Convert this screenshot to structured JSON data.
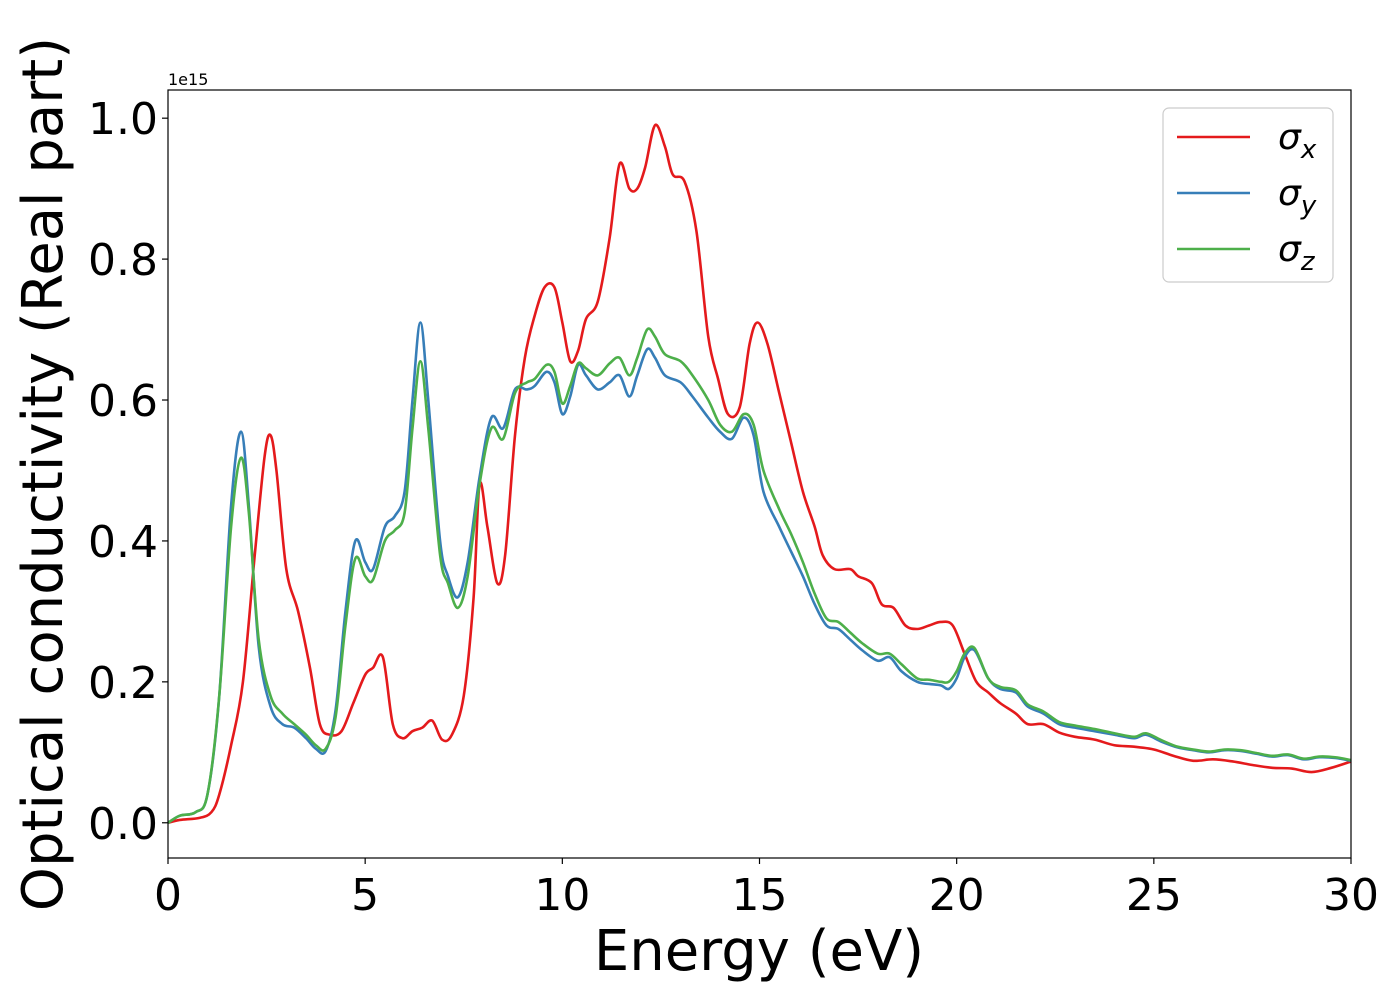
{
  "chart_data": {
    "type": "line",
    "xlabel": "Energy (eV)",
    "ylabel": "Optical conductivity (Real part)",
    "y_offset_label": "1e15",
    "xlim": [
      0,
      30
    ],
    "ylim": [
      -0.05,
      1.04
    ],
    "x_ticks": [
      0,
      5,
      10,
      15,
      20,
      25,
      30
    ],
    "x_tick_labels": [
      "0",
      "5",
      "10",
      "15",
      "20",
      "25",
      "30"
    ],
    "y_ticks": [
      0.0,
      0.2,
      0.4,
      0.6,
      0.8,
      1.0
    ],
    "y_tick_labels": [
      "0.0",
      "0.2",
      "0.4",
      "0.6",
      "0.8",
      "1.0"
    ],
    "grid": false,
    "legend_position": "top-right",
    "series": [
      {
        "name": "σx",
        "legend_base": "σ",
        "legend_sub": "x",
        "color": "#e41a1c",
        "points": [
          [
            0,
            0
          ],
          [
            0.3,
            0.004
          ],
          [
            0.8,
            0.007
          ],
          [
            1.1,
            0.015
          ],
          [
            1.3,
            0.04
          ],
          [
            1.6,
            0.11
          ],
          [
            1.9,
            0.2
          ],
          [
            2.2,
            0.38
          ],
          [
            2.45,
            0.52
          ],
          [
            2.6,
            0.55
          ],
          [
            2.75,
            0.5
          ],
          [
            3.0,
            0.36
          ],
          [
            3.3,
            0.3
          ],
          [
            3.6,
            0.22
          ],
          [
            3.85,
            0.14
          ],
          [
            4.1,
            0.125
          ],
          [
            4.4,
            0.13
          ],
          [
            4.7,
            0.17
          ],
          [
            5.0,
            0.21
          ],
          [
            5.2,
            0.22
          ],
          [
            5.45,
            0.235
          ],
          [
            5.7,
            0.14
          ],
          [
            5.95,
            0.12
          ],
          [
            6.2,
            0.13
          ],
          [
            6.45,
            0.135
          ],
          [
            6.7,
            0.145
          ],
          [
            6.95,
            0.118
          ],
          [
            7.2,
            0.125
          ],
          [
            7.5,
            0.18
          ],
          [
            7.75,
            0.32
          ],
          [
            7.9,
            0.48
          ],
          [
            8.1,
            0.42
          ],
          [
            8.35,
            0.34
          ],
          [
            8.55,
            0.38
          ],
          [
            8.8,
            0.55
          ],
          [
            9.05,
            0.66
          ],
          [
            9.3,
            0.72
          ],
          [
            9.55,
            0.76
          ],
          [
            9.8,
            0.76
          ],
          [
            10.0,
            0.71
          ],
          [
            10.2,
            0.655
          ],
          [
            10.4,
            0.67
          ],
          [
            10.6,
            0.715
          ],
          [
            10.9,
            0.74
          ],
          [
            11.2,
            0.83
          ],
          [
            11.45,
            0.935
          ],
          [
            11.7,
            0.9
          ],
          [
            11.9,
            0.9
          ],
          [
            12.1,
            0.93
          ],
          [
            12.35,
            0.99
          ],
          [
            12.6,
            0.96
          ],
          [
            12.8,
            0.92
          ],
          [
            13.1,
            0.91
          ],
          [
            13.4,
            0.84
          ],
          [
            13.7,
            0.69
          ],
          [
            13.95,
            0.63
          ],
          [
            14.2,
            0.58
          ],
          [
            14.5,
            0.59
          ],
          [
            14.75,
            0.68
          ],
          [
            14.95,
            0.71
          ],
          [
            15.2,
            0.68
          ],
          [
            15.5,
            0.61
          ],
          [
            15.8,
            0.54
          ],
          [
            16.1,
            0.47
          ],
          [
            16.4,
            0.42
          ],
          [
            16.6,
            0.38
          ],
          [
            16.9,
            0.36
          ],
          [
            17.3,
            0.36
          ],
          [
            17.5,
            0.35
          ],
          [
            17.85,
            0.34
          ],
          [
            18.1,
            0.31
          ],
          [
            18.4,
            0.305
          ],
          [
            18.7,
            0.28
          ],
          [
            19.0,
            0.275
          ],
          [
            19.3,
            0.28
          ],
          [
            19.6,
            0.285
          ],
          [
            19.9,
            0.28
          ],
          [
            20.2,
            0.24
          ],
          [
            20.5,
            0.2
          ],
          [
            20.8,
            0.185
          ],
          [
            21.1,
            0.17
          ],
          [
            21.5,
            0.155
          ],
          [
            21.8,
            0.14
          ],
          [
            22.2,
            0.14
          ],
          [
            22.6,
            0.128
          ],
          [
            23.0,
            0.122
          ],
          [
            23.5,
            0.118
          ],
          [
            24.0,
            0.11
          ],
          [
            24.5,
            0.108
          ],
          [
            25.0,
            0.104
          ],
          [
            25.5,
            0.095
          ],
          [
            26.0,
            0.088
          ],
          [
            26.5,
            0.09
          ],
          [
            27.0,
            0.087
          ],
          [
            27.5,
            0.082
          ],
          [
            28.0,
            0.078
          ],
          [
            28.5,
            0.077
          ],
          [
            29.0,
            0.072
          ],
          [
            29.5,
            0.078
          ],
          [
            30,
            0.087
          ]
        ]
      },
      {
        "name": "σy",
        "legend_base": "σ",
        "legend_sub": "y",
        "color": "#377eb8",
        "points": [
          [
            0,
            0
          ],
          [
            0.3,
            0.01
          ],
          [
            0.7,
            0.015
          ],
          [
            1.0,
            0.04
          ],
          [
            1.3,
            0.18
          ],
          [
            1.6,
            0.45
          ],
          [
            1.85,
            0.555
          ],
          [
            2.05,
            0.45
          ],
          [
            2.3,
            0.25
          ],
          [
            2.6,
            0.165
          ],
          [
            2.9,
            0.14
          ],
          [
            3.2,
            0.135
          ],
          [
            3.5,
            0.12
          ],
          [
            3.75,
            0.105
          ],
          [
            4.0,
            0.102
          ],
          [
            4.25,
            0.16
          ],
          [
            4.5,
            0.3
          ],
          [
            4.75,
            0.4
          ],
          [
            5.0,
            0.37
          ],
          [
            5.2,
            0.36
          ],
          [
            5.5,
            0.42
          ],
          [
            5.75,
            0.435
          ],
          [
            6.0,
            0.47
          ],
          [
            6.2,
            0.6
          ],
          [
            6.4,
            0.71
          ],
          [
            6.6,
            0.6
          ],
          [
            6.9,
            0.4
          ],
          [
            7.1,
            0.35
          ],
          [
            7.35,
            0.32
          ],
          [
            7.6,
            0.37
          ],
          [
            7.9,
            0.49
          ],
          [
            8.2,
            0.575
          ],
          [
            8.5,
            0.56
          ],
          [
            8.8,
            0.615
          ],
          [
            9.1,
            0.615
          ],
          [
            9.3,
            0.62
          ],
          [
            9.6,
            0.64
          ],
          [
            9.8,
            0.625
          ],
          [
            10.0,
            0.58
          ],
          [
            10.2,
            0.605
          ],
          [
            10.4,
            0.65
          ],
          [
            10.6,
            0.635
          ],
          [
            10.9,
            0.615
          ],
          [
            11.2,
            0.625
          ],
          [
            11.45,
            0.635
          ],
          [
            11.7,
            0.605
          ],
          [
            11.9,
            0.635
          ],
          [
            12.15,
            0.672
          ],
          [
            12.35,
            0.66
          ],
          [
            12.6,
            0.635
          ],
          [
            13.0,
            0.625
          ],
          [
            13.3,
            0.605
          ],
          [
            13.7,
            0.575
          ],
          [
            14.0,
            0.555
          ],
          [
            14.3,
            0.545
          ],
          [
            14.6,
            0.575
          ],
          [
            14.85,
            0.55
          ],
          [
            15.1,
            0.47
          ],
          [
            15.5,
            0.42
          ],
          [
            15.8,
            0.385
          ],
          [
            16.1,
            0.35
          ],
          [
            16.4,
            0.31
          ],
          [
            16.7,
            0.28
          ],
          [
            17.0,
            0.275
          ],
          [
            17.3,
            0.26
          ],
          [
            17.6,
            0.245
          ],
          [
            18.0,
            0.23
          ],
          [
            18.3,
            0.235
          ],
          [
            18.6,
            0.215
          ],
          [
            19.0,
            0.2
          ],
          [
            19.3,
            0.197
          ],
          [
            19.6,
            0.195
          ],
          [
            19.8,
            0.19
          ],
          [
            20.0,
            0.205
          ],
          [
            20.2,
            0.235
          ],
          [
            20.45,
            0.245
          ],
          [
            20.8,
            0.205
          ],
          [
            21.1,
            0.19
          ],
          [
            21.5,
            0.185
          ],
          [
            21.8,
            0.165
          ],
          [
            22.2,
            0.155
          ],
          [
            22.6,
            0.14
          ],
          [
            23.0,
            0.135
          ],
          [
            23.5,
            0.13
          ],
          [
            24.0,
            0.125
          ],
          [
            24.5,
            0.12
          ],
          [
            24.8,
            0.125
          ],
          [
            25.2,
            0.115
          ],
          [
            25.6,
            0.107
          ],
          [
            26.0,
            0.103
          ],
          [
            26.4,
            0.1
          ],
          [
            26.8,
            0.103
          ],
          [
            27.2,
            0.102
          ],
          [
            27.6,
            0.098
          ],
          [
            28.0,
            0.094
          ],
          [
            28.4,
            0.096
          ],
          [
            28.8,
            0.09
          ],
          [
            29.2,
            0.093
          ],
          [
            29.6,
            0.092
          ],
          [
            30,
            0.088
          ]
        ]
      },
      {
        "name": "σz",
        "legend_base": "σ",
        "legend_sub": "z",
        "color": "#4daf4a",
        "points": [
          [
            0,
            0
          ],
          [
            0.3,
            0.01
          ],
          [
            0.7,
            0.015
          ],
          [
            1.0,
            0.04
          ],
          [
            1.3,
            0.18
          ],
          [
            1.6,
            0.42
          ],
          [
            1.85,
            0.518
          ],
          [
            2.05,
            0.44
          ],
          [
            2.3,
            0.26
          ],
          [
            2.6,
            0.18
          ],
          [
            2.9,
            0.155
          ],
          [
            3.2,
            0.14
          ],
          [
            3.5,
            0.125
          ],
          [
            3.75,
            0.11
          ],
          [
            4.0,
            0.105
          ],
          [
            4.25,
            0.15
          ],
          [
            4.5,
            0.28
          ],
          [
            4.75,
            0.375
          ],
          [
            5.0,
            0.35
          ],
          [
            5.2,
            0.345
          ],
          [
            5.5,
            0.4
          ],
          [
            5.75,
            0.415
          ],
          [
            6.0,
            0.44
          ],
          [
            6.2,
            0.56
          ],
          [
            6.4,
            0.655
          ],
          [
            6.6,
            0.56
          ],
          [
            6.9,
            0.38
          ],
          [
            7.1,
            0.34
          ],
          [
            7.35,
            0.305
          ],
          [
            7.6,
            0.35
          ],
          [
            7.9,
            0.48
          ],
          [
            8.2,
            0.56
          ],
          [
            8.5,
            0.545
          ],
          [
            8.8,
            0.61
          ],
          [
            9.1,
            0.625
          ],
          [
            9.3,
            0.63
          ],
          [
            9.6,
            0.65
          ],
          [
            9.8,
            0.64
          ],
          [
            10.0,
            0.595
          ],
          [
            10.2,
            0.62
          ],
          [
            10.4,
            0.652
          ],
          [
            10.6,
            0.645
          ],
          [
            10.9,
            0.635
          ],
          [
            11.2,
            0.652
          ],
          [
            11.45,
            0.66
          ],
          [
            11.7,
            0.635
          ],
          [
            11.9,
            0.66
          ],
          [
            12.15,
            0.7
          ],
          [
            12.35,
            0.69
          ],
          [
            12.6,
            0.665
          ],
          [
            13.0,
            0.655
          ],
          [
            13.3,
            0.635
          ],
          [
            13.7,
            0.6
          ],
          [
            14.0,
            0.565
          ],
          [
            14.3,
            0.555
          ],
          [
            14.6,
            0.58
          ],
          [
            14.85,
            0.565
          ],
          [
            15.1,
            0.5
          ],
          [
            15.5,
            0.445
          ],
          [
            15.8,
            0.41
          ],
          [
            16.1,
            0.37
          ],
          [
            16.4,
            0.325
          ],
          [
            16.7,
            0.29
          ],
          [
            17.0,
            0.285
          ],
          [
            17.3,
            0.27
          ],
          [
            17.6,
            0.255
          ],
          [
            18.0,
            0.24
          ],
          [
            18.3,
            0.24
          ],
          [
            18.6,
            0.225
          ],
          [
            19.0,
            0.205
          ],
          [
            19.3,
            0.203
          ],
          [
            19.6,
            0.2
          ],
          [
            19.8,
            0.2
          ],
          [
            20.0,
            0.215
          ],
          [
            20.2,
            0.24
          ],
          [
            20.45,
            0.248
          ],
          [
            20.8,
            0.205
          ],
          [
            21.1,
            0.193
          ],
          [
            21.5,
            0.188
          ],
          [
            21.8,
            0.168
          ],
          [
            22.2,
            0.158
          ],
          [
            22.6,
            0.143
          ],
          [
            23.0,
            0.138
          ],
          [
            23.5,
            0.133
          ],
          [
            24.0,
            0.127
          ],
          [
            24.5,
            0.122
          ],
          [
            24.8,
            0.127
          ],
          [
            25.2,
            0.117
          ],
          [
            25.6,
            0.108
          ],
          [
            26.0,
            0.104
          ],
          [
            26.4,
            0.101
          ],
          [
            26.8,
            0.104
          ],
          [
            27.2,
            0.103
          ],
          [
            27.6,
            0.099
          ],
          [
            28.0,
            0.095
          ],
          [
            28.4,
            0.097
          ],
          [
            28.8,
            0.091
          ],
          [
            29.2,
            0.094
          ],
          [
            29.6,
            0.093
          ],
          [
            30,
            0.089
          ]
        ]
      }
    ]
  }
}
